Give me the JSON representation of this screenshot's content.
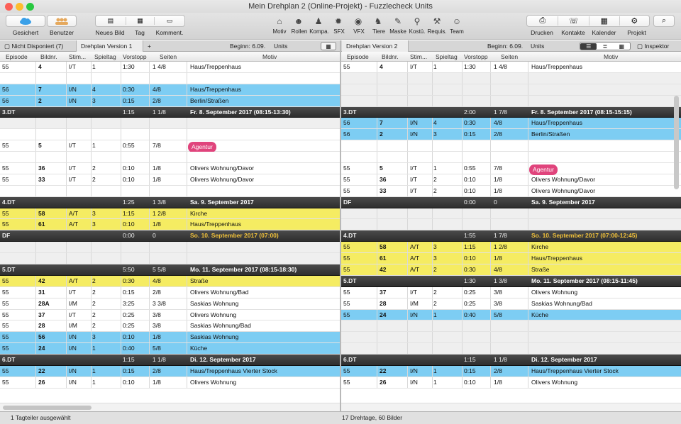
{
  "window": {
    "title": "Mein Drehplan 2 (Online-Projekt) - Fuzzlecheck Units"
  },
  "toolbar": {
    "gesichert": "Gesichert",
    "benutzer": "Benutzer",
    "neues_bild": "Neues Bild",
    "tag": "Tag",
    "komment": "Komment.",
    "motiv": "Motiv",
    "rollen": "Rollen",
    "kompa": "Kompa.",
    "sfx": "SFX",
    "vfx": "VFX",
    "tiere": "Tiere",
    "maske": "Maske",
    "kostu": "Kostü.",
    "requis": "Requis.",
    "team": "Team",
    "drucken": "Drucken",
    "kontakte": "Kontakte",
    "kalender": "Kalender",
    "projekt": "Projekt"
  },
  "tabs": {
    "left_tab1": "Nicht Disponiert (7)",
    "left_tab2": "Drehplan Version 1",
    "add": "+",
    "left_begin": "Beginn: 6.09.",
    "left_units": "Units",
    "right_tab": "Drehplan Version 2",
    "right_begin": "Beginn: 6.09.",
    "right_units": "Units",
    "inspektor": "Inspektor"
  },
  "columns": {
    "episode": "Episode",
    "bildnr": "Bildnr.",
    "stim": "Stim...",
    "spieltag": "Spieltag",
    "vorstopp": "Vorstopp",
    "seiten": "Seiten",
    "motiv": "Motiv"
  },
  "left_rows": [
    {
      "type": "white",
      "ep": "55",
      "nr": "4",
      "stim": "I/T",
      "tag": "1",
      "vor": "1:30",
      "sei": "1 4/8",
      "mot": "Haus/Treppenhaus"
    },
    {
      "type": "empty"
    },
    {
      "type": "blue",
      "ep": "56",
      "nr": "7",
      "stim": "I/N",
      "tag": "4",
      "vor": "0:30",
      "sei": "4/8",
      "mot": "Haus/Treppenhaus"
    },
    {
      "type": "blue",
      "ep": "56",
      "nr": "2",
      "stim": "I/N",
      "tag": "3",
      "vor": "0:15",
      "sei": "2/8",
      "mot": "Berlin/Straßen"
    },
    {
      "type": "dark",
      "ep": "3.DT",
      "vor": "1:15",
      "sei": "1 1/8",
      "mot": "Fr. 8. September 2017 (08:15-13:30)"
    },
    {
      "type": "blank"
    },
    {
      "type": "empty"
    },
    {
      "type": "white",
      "ep": "55",
      "nr": "5",
      "stim": "I/T",
      "tag": "1",
      "vor": "0:55",
      "sei": "7/8",
      "pill": "Agentur"
    },
    {
      "type": "empty"
    },
    {
      "type": "white",
      "ep": "55",
      "nr": "36",
      "stim": "I/T",
      "tag": "2",
      "vor": "0:10",
      "sei": "1/8",
      "mot": "Olivers Wohnung/Davor"
    },
    {
      "type": "white",
      "ep": "55",
      "nr": "33",
      "stim": "I/T",
      "tag": "2",
      "vor": "0:10",
      "sei": "1/8",
      "mot": "Olivers Wohnung/Davor"
    },
    {
      "type": "empty"
    },
    {
      "type": "dark",
      "ep": "4.DT",
      "vor": "1:25",
      "sei": "1 3/8",
      "mot": "Sa. 9. September 2017"
    },
    {
      "type": "yellow",
      "ep": "55",
      "nr": "58",
      "stim": "A/T",
      "tag": "3",
      "vor": "1:15",
      "sei": "1 2/8",
      "mot": "Kirche"
    },
    {
      "type": "yellow",
      "ep": "55",
      "nr": "61",
      "stim": "A/T",
      "tag": "3",
      "vor": "0:10",
      "sei": "1/8",
      "mot": "Haus/Treppenhaus"
    },
    {
      "type": "dark",
      "ep": "DF",
      "vor": "0:00",
      "sei": "0",
      "mot": "So. 10. September 2017 (07:00)",
      "orange": true
    },
    {
      "type": "blank"
    },
    {
      "type": "blank"
    },
    {
      "type": "dark",
      "ep": "5.DT",
      "vor": "5:50",
      "sei": "5 5/8",
      "mot": "Mo. 11. September 2017 (08:15-18:30)"
    },
    {
      "type": "yellow",
      "ep": "55",
      "nr": "42",
      "stim": "A/T",
      "tag": "2",
      "vor": "0:30",
      "sei": "4/8",
      "mot": "Straße"
    },
    {
      "type": "white",
      "ep": "55",
      "nr": "31",
      "stim": "I/T",
      "tag": "2",
      "vor": "0:15",
      "sei": "2/8",
      "mot": "Olivers Wohnung/Bad"
    },
    {
      "type": "white",
      "ep": "55",
      "nr": "28A",
      "stim": "I/M",
      "tag": "2",
      "vor": "3:25",
      "sei": "3 3/8",
      "mot": "Saskias Wohnung"
    },
    {
      "type": "white",
      "ep": "55",
      "nr": "37",
      "stim": "I/T",
      "tag": "2",
      "vor": "0:25",
      "sei": "3/8",
      "mot": "Olivers Wohnung"
    },
    {
      "type": "white",
      "ep": "55",
      "nr": "28",
      "stim": "I/M",
      "tag": "2",
      "vor": "0:25",
      "sei": "3/8",
      "mot": "Saskias Wohnung/Bad"
    },
    {
      "type": "blue",
      "ep": "55",
      "nr": "56",
      "stim": "I/N",
      "tag": "3",
      "vor": "0:10",
      "sei": "1/8",
      "mot": "Saskias Wohnung"
    },
    {
      "type": "blue",
      "ep": "55",
      "nr": "24",
      "stim": "I/N",
      "tag": "1",
      "vor": "0:40",
      "sei": "5/8",
      "mot": "Küche"
    },
    {
      "type": "dark",
      "ep": "6.DT",
      "vor": "1:15",
      "sei": "1 1/8",
      "mot": "Di. 12. September 2017"
    },
    {
      "type": "blue",
      "ep": "55",
      "nr": "22",
      "stim": "I/N",
      "tag": "1",
      "vor": "0:15",
      "sei": "2/8",
      "mot": "Haus/Treppenhaus Vierter Stock"
    },
    {
      "type": "white",
      "ep": "55",
      "nr": "26",
      "stim": "I/N",
      "tag": "1",
      "vor": "0:10",
      "sei": "1/8",
      "mot": "Olivers Wohnung"
    }
  ],
  "right_rows": [
    {
      "type": "white",
      "ep": "55",
      "nr": "4",
      "stim": "I/T",
      "tag": "1",
      "vor": "1:30",
      "sei": "1 4/8",
      "mot": "Haus/Treppenhaus"
    },
    {
      "type": "blank"
    },
    {
      "type": "blank"
    },
    {
      "type": "blank"
    },
    {
      "type": "dark",
      "ep": "3.DT",
      "vor": "2:00",
      "sei": "1 7/8",
      "mot": "Fr. 8. September 2017 (08:15-15:15)"
    },
    {
      "type": "blue",
      "ep": "56",
      "nr": "7",
      "stim": "I/N",
      "tag": "4",
      "vor": "0:30",
      "sei": "4/8",
      "mot": "Haus/Treppenhaus"
    },
    {
      "type": "blue",
      "ep": "56",
      "nr": "2",
      "stim": "I/N",
      "tag": "3",
      "vor": "0:15",
      "sei": "2/8",
      "mot": "Berlin/Straßen"
    },
    {
      "type": "empty"
    },
    {
      "type": "empty"
    },
    {
      "type": "white",
      "ep": "55",
      "nr": "5",
      "stim": "I/T",
      "tag": "1",
      "vor": "0:55",
      "sei": "7/8",
      "pill": "Agentur"
    },
    {
      "type": "white",
      "ep": "55",
      "nr": "36",
      "stim": "I/T",
      "tag": "2",
      "vor": "0:10",
      "sei": "1/8",
      "mot": "Olivers Wohnung/Davor"
    },
    {
      "type": "white",
      "ep": "55",
      "nr": "33",
      "stim": "I/T",
      "tag": "2",
      "vor": "0:10",
      "sei": "1/8",
      "mot": "Olivers Wohnung/Davor"
    },
    {
      "type": "dark",
      "ep": "DF",
      "vor": "0:00",
      "sei": "0",
      "mot": "Sa. 9. September 2017"
    },
    {
      "type": "blank"
    },
    {
      "type": "blank"
    },
    {
      "type": "dark",
      "ep": "4.DT",
      "vor": "1:55",
      "sei": "1 7/8",
      "mot": "So. 10. September 2017 (07:00-12:45)",
      "orange": true
    },
    {
      "type": "yellow",
      "ep": "55",
      "nr": "58",
      "stim": "A/T",
      "tag": "3",
      "vor": "1:15",
      "sei": "1 2/8",
      "mot": "Kirche"
    },
    {
      "type": "yellow",
      "ep": "55",
      "nr": "61",
      "stim": "A/T",
      "tag": "3",
      "vor": "0:10",
      "sei": "1/8",
      "mot": "Haus/Treppenhaus"
    },
    {
      "type": "yellow",
      "ep": "55",
      "nr": "42",
      "stim": "A/T",
      "tag": "2",
      "vor": "0:30",
      "sei": "4/8",
      "mot": "Straße"
    },
    {
      "type": "dark",
      "ep": "5.DT",
      "vor": "1:30",
      "sei": "1 3/8",
      "mot": "Mo. 11. September 2017 (08:15-11:45)"
    },
    {
      "type": "white",
      "ep": "55",
      "nr": "37",
      "stim": "I/T",
      "tag": "2",
      "vor": "0:25",
      "sei": "3/8",
      "mot": "Olivers Wohnung"
    },
    {
      "type": "white",
      "ep": "55",
      "nr": "28",
      "stim": "I/M",
      "tag": "2",
      "vor": "0:25",
      "sei": "3/8",
      "mot": "Saskias Wohnung/Bad"
    },
    {
      "type": "blue",
      "ep": "55",
      "nr": "24",
      "stim": "I/N",
      "tag": "1",
      "vor": "0:40",
      "sei": "5/8",
      "mot": "Küche"
    },
    {
      "type": "blank"
    },
    {
      "type": "blank"
    },
    {
      "type": "blank"
    },
    {
      "type": "dark",
      "ep": "6.DT",
      "vor": "1:15",
      "sei": "1 1/8",
      "mot": "Di. 12. September 2017"
    },
    {
      "type": "blue",
      "ep": "55",
      "nr": "22",
      "stim": "I/N",
      "tag": "1",
      "vor": "0:15",
      "sei": "2/8",
      "mot": "Haus/Treppenhaus Vierter Stock"
    },
    {
      "type": "white",
      "ep": "55",
      "nr": "26",
      "stim": "I/N",
      "tag": "1",
      "vor": "0:10",
      "sei": "1/8",
      "mot": "Olivers Wohnung"
    }
  ],
  "status": {
    "left": "1 Tagteiler ausgewählt",
    "right": "17 Drehtage, 60 Bilder"
  },
  "colors": {
    "blue_row": "#7dcdf3",
    "yellow_row": "#f5ec62",
    "day_header": "#3a3a3a",
    "pill": "#e0447c",
    "weekend_text": "#f2c23a"
  }
}
